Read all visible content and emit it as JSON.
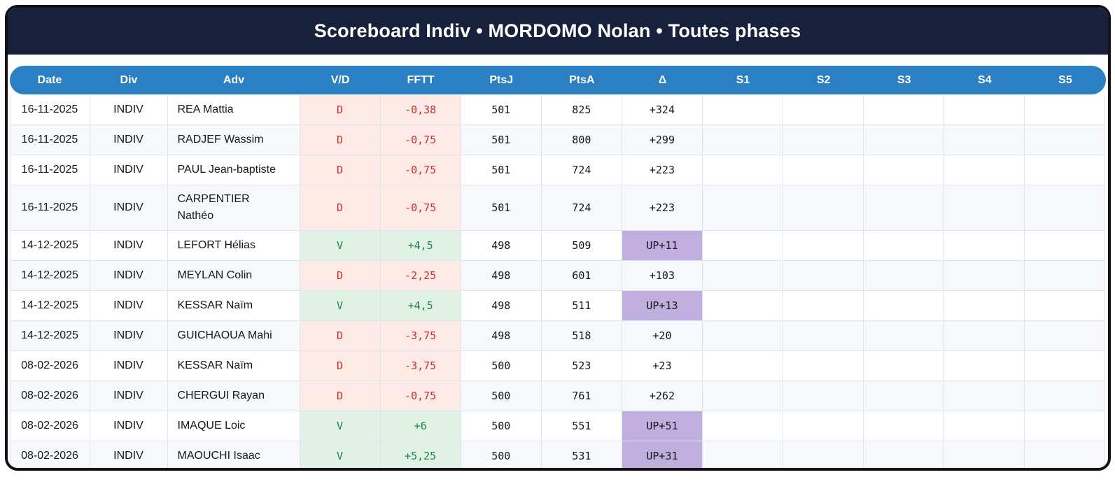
{
  "header": {
    "title": "Scoreboard Indiv • MORDOMO Nolan • Toutes phases"
  },
  "table": {
    "columns": [
      {
        "key": "date",
        "label": "Date"
      },
      {
        "key": "div",
        "label": "Div"
      },
      {
        "key": "adv",
        "label": "Adv"
      },
      {
        "key": "vd",
        "label": "V/D"
      },
      {
        "key": "fftt",
        "label": "FFTT"
      },
      {
        "key": "ptsj",
        "label": "PtsJ"
      },
      {
        "key": "ptsa",
        "label": "PtsA"
      },
      {
        "key": "delta",
        "label": "Δ"
      },
      {
        "key": "s1",
        "label": "S1"
      },
      {
        "key": "s2",
        "label": "S2"
      },
      {
        "key": "s3",
        "label": "S3"
      },
      {
        "key": "s4",
        "label": "S4"
      },
      {
        "key": "s5",
        "label": "S5"
      }
    ],
    "rows": [
      {
        "date": "16-11-2025",
        "div": "INDIV",
        "adv": "REA Mattia",
        "vd": "D",
        "fftt": "-0,38",
        "ptsj": "501",
        "ptsa": "825",
        "delta": "+324",
        "s1": "",
        "s2": "",
        "s3": "",
        "s4": "",
        "s5": "",
        "result": "loss",
        "delta_up": false
      },
      {
        "date": "16-11-2025",
        "div": "INDIV",
        "adv": "RADJEF Wassim",
        "vd": "D",
        "fftt": "-0,75",
        "ptsj": "501",
        "ptsa": "800",
        "delta": "+299",
        "s1": "",
        "s2": "",
        "s3": "",
        "s4": "",
        "s5": "",
        "result": "loss",
        "delta_up": false
      },
      {
        "date": "16-11-2025",
        "div": "INDIV",
        "adv": "PAUL Jean-baptiste",
        "vd": "D",
        "fftt": "-0,75",
        "ptsj": "501",
        "ptsa": "724",
        "delta": "+223",
        "s1": "",
        "s2": "",
        "s3": "",
        "s4": "",
        "s5": "",
        "result": "loss",
        "delta_up": false
      },
      {
        "date": "16-11-2025",
        "div": "INDIV",
        "adv": "CARPENTIER Nathéo",
        "vd": "D",
        "fftt": "-0,75",
        "ptsj": "501",
        "ptsa": "724",
        "delta": "+223",
        "s1": "",
        "s2": "",
        "s3": "",
        "s4": "",
        "s5": "",
        "result": "loss",
        "delta_up": false
      },
      {
        "date": "14-12-2025",
        "div": "INDIV",
        "adv": "LEFORT Hélias",
        "vd": "V",
        "fftt": "+4,5",
        "ptsj": "498",
        "ptsa": "509",
        "delta": "UP+11",
        "s1": "",
        "s2": "",
        "s3": "",
        "s4": "",
        "s5": "",
        "result": "win",
        "delta_up": true
      },
      {
        "date": "14-12-2025",
        "div": "INDIV",
        "adv": "MEYLAN Colin",
        "vd": "D",
        "fftt": "-2,25",
        "ptsj": "498",
        "ptsa": "601",
        "delta": "+103",
        "s1": "",
        "s2": "",
        "s3": "",
        "s4": "",
        "s5": "",
        "result": "loss",
        "delta_up": false
      },
      {
        "date": "14-12-2025",
        "div": "INDIV",
        "adv": "KESSAR Naïm",
        "vd": "V",
        "fftt": "+4,5",
        "ptsj": "498",
        "ptsa": "511",
        "delta": "UP+13",
        "s1": "",
        "s2": "",
        "s3": "",
        "s4": "",
        "s5": "",
        "result": "win",
        "delta_up": true
      },
      {
        "date": "14-12-2025",
        "div": "INDIV",
        "adv": "GUICHAOUA Mahi",
        "vd": "D",
        "fftt": "-3,75",
        "ptsj": "498",
        "ptsa": "518",
        "delta": "+20",
        "s1": "",
        "s2": "",
        "s3": "",
        "s4": "",
        "s5": "",
        "result": "loss",
        "delta_up": false
      },
      {
        "date": "08-02-2026",
        "div": "INDIV",
        "adv": "KESSAR Naïm",
        "vd": "D",
        "fftt": "-3,75",
        "ptsj": "500",
        "ptsa": "523",
        "delta": "+23",
        "s1": "",
        "s2": "",
        "s3": "",
        "s4": "",
        "s5": "",
        "result": "loss",
        "delta_up": false
      },
      {
        "date": "08-02-2026",
        "div": "INDIV",
        "adv": "CHERGUI Rayan",
        "vd": "D",
        "fftt": "-0,75",
        "ptsj": "500",
        "ptsa": "761",
        "delta": "+262",
        "s1": "",
        "s2": "",
        "s3": "",
        "s4": "",
        "s5": "",
        "result": "loss",
        "delta_up": false
      },
      {
        "date": "08-02-2026",
        "div": "INDIV",
        "adv": "IMAQUE Loic",
        "vd": "V",
        "fftt": "+6",
        "ptsj": "500",
        "ptsa": "551",
        "delta": "UP+51",
        "s1": "",
        "s2": "",
        "s3": "",
        "s4": "",
        "s5": "",
        "result": "win",
        "delta_up": true
      },
      {
        "date": "08-02-2026",
        "div": "INDIV",
        "adv": "MAOUCHI Isaac",
        "vd": "V",
        "fftt": "+5,25",
        "ptsj": "500",
        "ptsa": "531",
        "delta": "UP+31",
        "s1": "",
        "s2": "",
        "s3": "",
        "s4": "",
        "s5": "",
        "result": "win",
        "delta_up": true
      }
    ]
  },
  "colors": {
    "navy": "#18213c",
    "header_blue": "#2a80c2",
    "border_dark": "#141019",
    "grid_line": "#dfe5ef",
    "alt_row": "#f6f8fc",
    "loss_bg": "#fdeae7",
    "loss_text": "#c9302a",
    "win_bg": "#e0f1e5",
    "win_text": "#1e8440",
    "up_bg": "#c0aede"
  }
}
